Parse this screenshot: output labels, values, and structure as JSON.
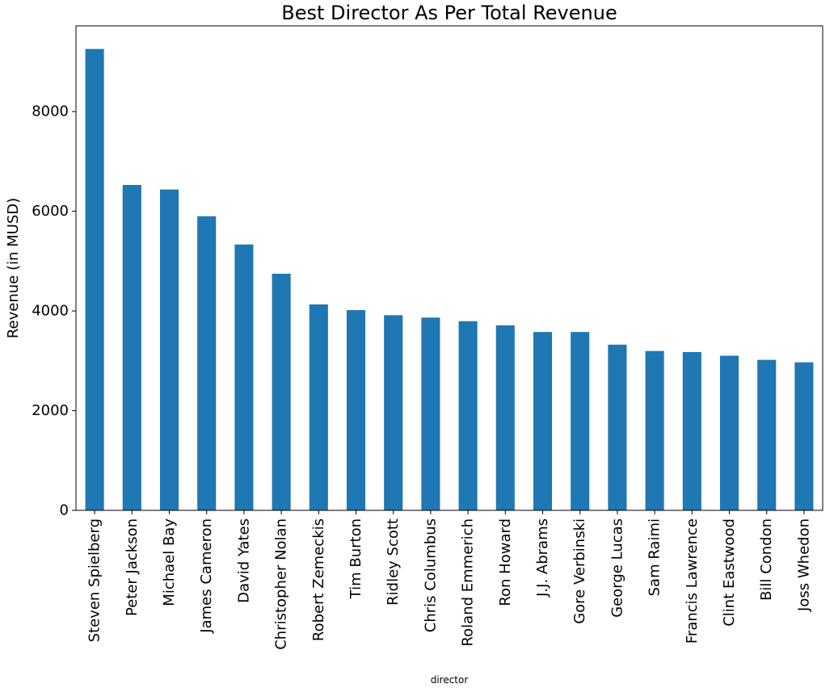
{
  "chart_data": {
    "type": "bar",
    "title": "Best Director As Per Total Revenue",
    "xlabel": "director",
    "ylabel": "Revenue (in MUSD)",
    "ylim": [
      0,
      9720
    ],
    "yticks": [
      0,
      2000,
      4000,
      6000,
      8000
    ],
    "ytick_labels": [
      "0",
      "2000",
      "4000",
      "6000",
      "8000"
    ],
    "categories": [
      "Steven Spielberg",
      "Peter Jackson",
      "Michael Bay",
      "James Cameron",
      "David Yates",
      "Christopher Nolan",
      "Robert Zemeckis",
      "Tim Burton",
      "Ridley Scott",
      "Chris Columbus",
      "Roland Emmerich",
      "Ron Howard",
      "J.J. Abrams",
      "Gore Verbinski",
      "George Lucas",
      "Sam Raimi",
      "Francis Lawrence",
      "Clint Eastwood",
      "Bill Condon",
      "Joss Whedon"
    ],
    "values": [
      9256,
      6528,
      6437,
      5900,
      5334,
      4747,
      4131,
      4017,
      3915,
      3867,
      3795,
      3712,
      3578,
      3578,
      3324,
      3197,
      3176,
      3102,
      3019,
      2970
    ],
    "bar_color": "#1f77b4",
    "grid": false,
    "legend": "none"
  }
}
